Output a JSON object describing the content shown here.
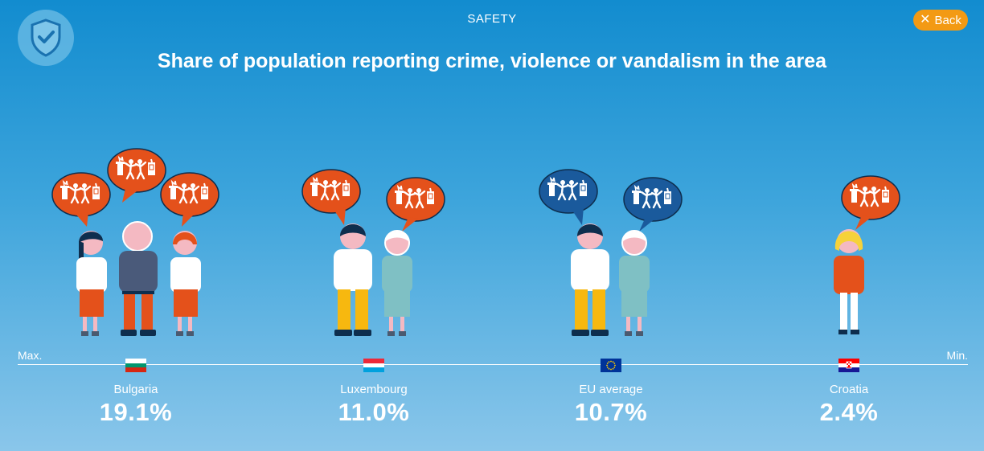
{
  "header": {
    "section_label": "SAFETY",
    "back_label": "Back",
    "badge_icon": "shield-check-icon"
  },
  "title": "Share of population reporting crime, violence or vandalism in the area",
  "scale": {
    "max_label": "Max.",
    "min_label": "Min."
  },
  "entries": [
    {
      "country": "Bulgaria",
      "value": "19.1%",
      "flag": "bulgaria-flag",
      "bubbles": 3,
      "bubble_color": "#e4511b"
    },
    {
      "country": "Luxembourg",
      "value": "11.0%",
      "flag": "luxembourg-flag",
      "bubbles": 2,
      "bubble_color": "#e4511b"
    },
    {
      "country": "EU average",
      "value": "10.7%",
      "flag": "eu-flag",
      "bubbles": 2,
      "bubble_color": "#1a5a9c"
    },
    {
      "country": "Croatia",
      "value": "2.4%",
      "flag": "croatia-flag",
      "bubbles": 1,
      "bubble_color": "#e4511b"
    }
  ],
  "colors": {
    "accent_orange": "#f39a14",
    "bubble_orange": "#e4511b",
    "bubble_blue": "#1a5a9c",
    "figure_navy": "#0e2e4e"
  }
}
